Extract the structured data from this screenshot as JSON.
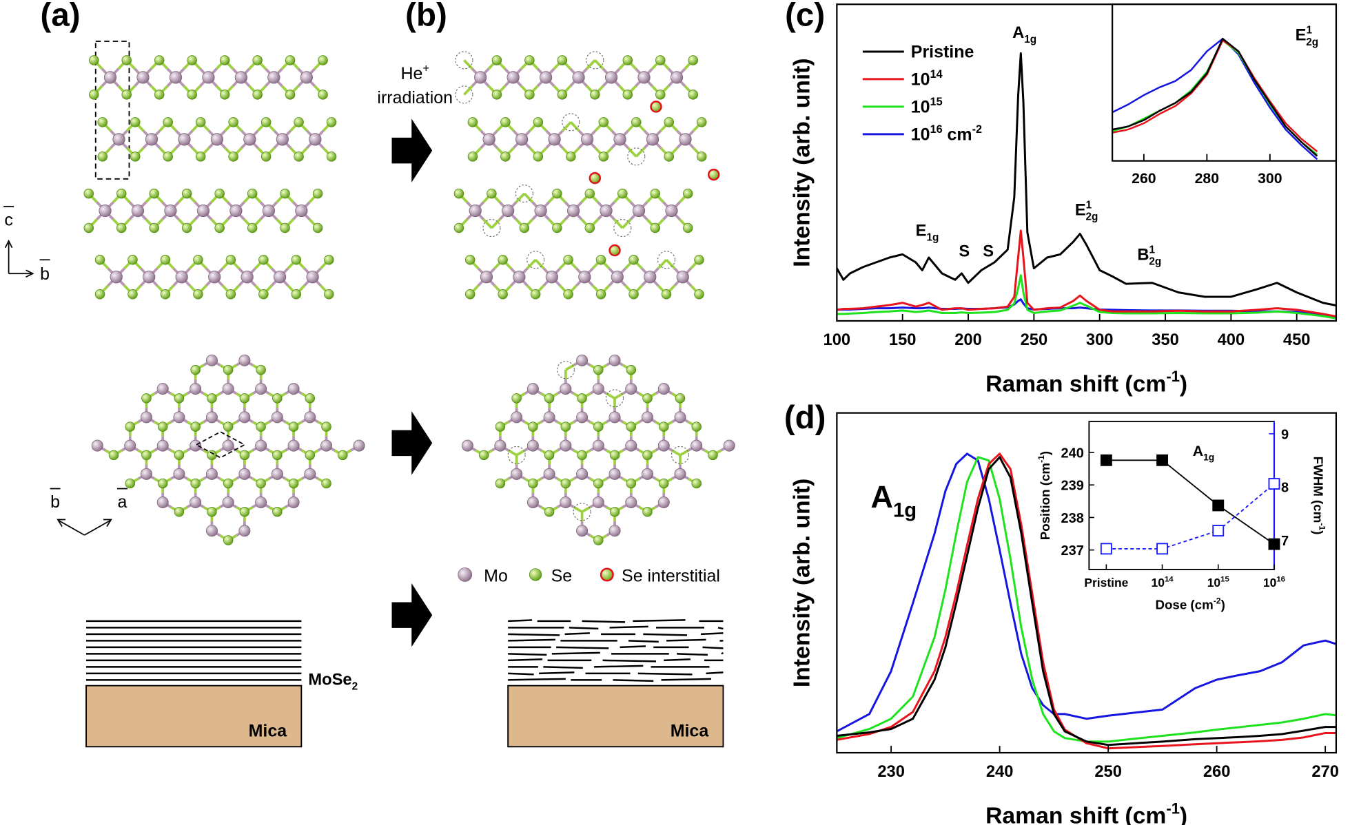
{
  "panel_labels": [
    "(a)",
    "(b)",
    "(c)",
    "(d)"
  ],
  "diagram": {
    "irradiation": [
      [
        "He",
        {
          "sup": "+"
        }
      ],
      "irradiation"
    ],
    "axes_side": [
      "c",
      "b"
    ],
    "axes_top": [
      "b",
      "a"
    ],
    "legend": [
      "Mo",
      "Se",
      "Se interstitial"
    ],
    "film": [
      "MoSe",
      {
        "sub": "2"
      }
    ],
    "substrate": [
      "Mica",
      "Mica"
    ]
  },
  "chart_data": [
    {
      "type": "line",
      "y_label": "Intensity (arb. unit)",
      "x_label": [
        "Raman shift (cm",
        {
          "sup": "-1"
        },
        ")"
      ],
      "xlim": [
        100,
        480
      ],
      "ylim": [
        0,
        100
      ],
      "xticks": [
        100,
        150,
        200,
        250,
        300,
        350,
        400,
        450
      ],
      "legend": "upper left",
      "annotations": [
        [
          "E",
          {
            "sub": "1g"
          }
        ],
        "S",
        "S",
        [
          "A",
          {
            "sub": "1g"
          }
        ],
        [
          "E",
          {
            "sup": "1",
            "sub": "2g"
          }
        ],
        [
          "B",
          {
            "sup": "1",
            "sub": "2g"
          }
        ]
      ],
      "x": [
        100,
        105,
        110,
        120,
        130,
        140,
        150,
        160,
        165,
        170,
        180,
        190,
        195,
        200,
        210,
        220,
        230,
        235,
        238,
        240,
        242,
        245,
        250,
        260,
        270,
        280,
        285,
        290,
        300,
        310,
        320,
        340,
        360,
        380,
        400,
        420,
        435,
        450,
        470,
        480
      ],
      "series": [
        {
          "name": "Pristine",
          "color": "#000000",
          "values": [
            16.6,
            13,
            15,
            17,
            18.5,
            20,
            21,
            18.5,
            16,
            20,
            15,
            13,
            15,
            12,
            16,
            18.5,
            22.5,
            39,
            71,
            84.5,
            69,
            28,
            16.6,
            20,
            21,
            25,
            27.5,
            24,
            16,
            14,
            11.7,
            12,
            9,
            7.6,
            7.6,
            10,
            12,
            9,
            5.7,
            4.9
          ]
        },
        {
          "name": [
            "10",
            {
              "sup": "14"
            }
          ],
          "color": "#e8141b",
          "values": [
            3.5,
            3.8,
            3.8,
            4,
            4.5,
            5,
            5.7,
            4.5,
            5,
            5.7,
            3.5,
            4,
            4,
            3.5,
            3.8,
            4,
            4.5,
            7.6,
            20,
            28.5,
            20,
            5.7,
            3.5,
            4,
            4.2,
            6.3,
            8,
            6.3,
            3.5,
            3,
            3,
            3,
            3.2,
            3,
            3,
            3.5,
            4,
            3.5,
            2.2,
            1.4
          ]
        },
        {
          "name": [
            "10",
            {
              "sup": "15"
            }
          ],
          "color": "#1ee21e",
          "values": [
            2.2,
            2.2,
            2.3,
            2.5,
            2.8,
            3,
            3.3,
            2.8,
            3,
            3.3,
            2.5,
            2.5,
            2.7,
            2.5,
            2.6,
            2.8,
            3.5,
            5.5,
            10.3,
            14.4,
            9,
            3.5,
            2.5,
            3,
            3.3,
            4.8,
            5.7,
            4.8,
            2.8,
            2.5,
            2.4,
            2.4,
            2.5,
            2.4,
            2.4,
            2.6,
            3,
            2.5,
            1.5,
            0.8
          ]
        },
        {
          "name": [
            "10",
            {
              "sup": "16"
            },
            " cm",
            {
              "sup": "-2"
            }
          ],
          "color": "#1616e0",
          "values": [
            3.5,
            3.6,
            3.6,
            3.8,
            4,
            4,
            4.2,
            4,
            4,
            4.2,
            3.8,
            3.8,
            3.9,
            3.8,
            3.8,
            4,
            4.3,
            5.2,
            6.3,
            6.8,
            5.5,
            4,
            3.6,
            3.8,
            4,
            4,
            4.2,
            4,
            3.6,
            3.5,
            3.4,
            3.3,
            3.3,
            3.2,
            3.2,
            3,
            3,
            2.8,
            2,
            1.4
          ]
        }
      ]
    },
    {
      "type": "line",
      "xlim": [
        250,
        321
      ],
      "ylim": [
        0,
        100
      ],
      "xticks": [
        260,
        280,
        300
      ],
      "annotations": [
        [
          "E",
          {
            "sup": "1",
            "sub": "2g"
          }
        ]
      ],
      "x": [
        250,
        255,
        260,
        265,
        270,
        275,
        280,
        285,
        290,
        295,
        300,
        305,
        310,
        315
      ],
      "series": [
        {
          "color": "#000000",
          "values": [
            20,
            22,
            26,
            32,
            37,
            44,
            56,
            78,
            70,
            52,
            37,
            22,
            12,
            3
          ]
        },
        {
          "color": "#e8141b",
          "values": [
            18,
            20,
            24,
            30,
            35,
            43,
            55,
            77,
            70,
            53,
            38,
            24,
            14,
            6
          ]
        },
        {
          "color": "#1ee21e",
          "values": [
            19,
            22,
            27,
            32,
            37,
            45,
            57,
            77,
            69,
            52,
            36,
            22,
            12,
            4
          ]
        },
        {
          "color": "#1616e0",
          "values": [
            31,
            36,
            42,
            47,
            51,
            58,
            70,
            78,
            68,
            50,
            34,
            20,
            10,
            1
          ]
        }
      ]
    },
    {
      "type": "line",
      "y_label": "Intensity (arb. unit)",
      "x_label": [
        "Raman shift (cm",
        {
          "sup": "-1"
        },
        ")"
      ],
      "xlim": [
        225,
        271
      ],
      "ylim": [
        0,
        100
      ],
      "xticks": [
        230,
        240,
        250,
        260,
        270
      ],
      "annotations": [
        [
          "A",
          {
            "sub": "1g"
          }
        ]
      ],
      "x": [
        225,
        228,
        230,
        232,
        234,
        235,
        236,
        237,
        238,
        239,
        240,
        241,
        242,
        243,
        244,
        245,
        246,
        248,
        250,
        255,
        258,
        260,
        262,
        264,
        266,
        268,
        270,
        271
      ],
      "series": [
        {
          "color": "#000000",
          "values": [
            5,
            6,
            7,
            10,
            21.5,
            31,
            44,
            58,
            72,
            83.5,
            87,
            81,
            64.5,
            44,
            24,
            11.4,
            6.3,
            3.3,
            2.3,
            3.3,
            4,
            4.3,
            4.6,
            5,
            5.5,
            6.5,
            7.6,
            7.6
          ]
        },
        {
          "color": "#e8141b",
          "values": [
            3.8,
            5.5,
            7.6,
            12,
            24,
            34,
            46.8,
            61,
            74.7,
            85,
            88,
            83.5,
            67,
            46.8,
            26.6,
            12.7,
            6.8,
            2.8,
            1.3,
            2,
            2.5,
            2.8,
            3.1,
            3.4,
            3.8,
            4.5,
            5.8,
            5.8
          ]
        },
        {
          "color": "#1ee21e",
          "values": [
            4.3,
            7,
            10,
            16.5,
            34,
            48,
            64.5,
            79.7,
            87,
            86,
            74.7,
            57,
            36.7,
            21.5,
            11.4,
            6.3,
            4.3,
            3.3,
            3.3,
            5,
            6,
            6.8,
            7.5,
            8.2,
            8.9,
            10,
            11.4,
            11
          ]
        },
        {
          "color": "#1616e0",
          "values": [
            6.3,
            11.4,
            24,
            44,
            64.5,
            77,
            85,
            88,
            86,
            74.7,
            59.7,
            44,
            29,
            19,
            14,
            11.4,
            11.4,
            10,
            10.9,
            12.7,
            19,
            21.5,
            22.8,
            24,
            26.6,
            31.6,
            33,
            32
          ]
        }
      ]
    },
    {
      "type": "line",
      "categories": [
        "Pristine",
        [
          "10",
          {
            "sup": "14"
          }
        ],
        [
          "10",
          {
            "sup": "15"
          }
        ],
        [
          "10",
          {
            "sup": "16"
          }
        ]
      ],
      "x_label": [
        "Dose (cm",
        {
          "sup": "-2"
        },
        ")"
      ],
      "y_label": [
        "Position (cm",
        {
          "sup": "-1"
        },
        ")"
      ],
      "y2_label": [
        "FWHM (cm",
        {
          "sup": "-1"
        },
        ")"
      ],
      "ylim": [
        236.4,
        240.95
      ],
      "yticks": [
        237,
        238,
        239,
        240
      ],
      "y2lim": [
        6.45,
        9.23
      ],
      "y2ticks": [
        7,
        8,
        9
      ],
      "annotations": [
        [
          "A",
          {
            "sub": "1g"
          }
        ]
      ],
      "series": [
        {
          "color": "#000000",
          "marker": "filled",
          "values": [
            239.76,
            239.76,
            238.37,
            237.18
          ]
        },
        {
          "color": "#1a1aff",
          "marker": "open",
          "dash": true,
          "axis": "y2",
          "values": [
            6.84,
            6.84,
            7.18,
            8.06
          ]
        }
      ]
    }
  ]
}
